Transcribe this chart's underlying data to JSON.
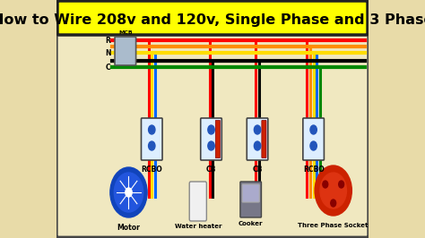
{
  "title": "How to Wire 208v and 120v, Single Phase and 3 Phase",
  "title_fontsize": 11.5,
  "title_color": "#000000",
  "title_bg": "#ffff00",
  "bg_color": "#e8dba8",
  "bg_color2": "#f0e8c0",
  "bus_colors": [
    "#ff0000",
    "#ff8c00",
    "#ffdd00",
    "#000000",
    "#008800"
  ],
  "bus_labels_left": [
    "R",
    "",
    "N",
    "",
    "C"
  ],
  "comp_labels": [
    "RCBO",
    "CB",
    "CB",
    "RCBO"
  ],
  "appl_labels": [
    "Motor",
    "Water heater",
    "Cooker",
    "Three Phase Socket"
  ],
  "border_color": "#444444",
  "text_color": "#000000",
  "wire_sets": [
    [
      "#ff0000",
      "#ffdd00",
      "#0066ff"
    ],
    [
      "#ff0000",
      "#000000"
    ],
    [
      "#ff0000",
      "#000000"
    ],
    [
      "#ff0000",
      "#ff8c00",
      "#ffdd00",
      "#0066ff",
      "#008800"
    ]
  ]
}
